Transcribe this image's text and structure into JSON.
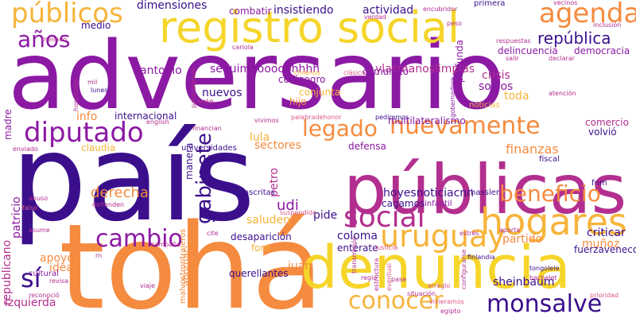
{
  "palette": {
    "deep_purple": "#3b0f8c",
    "purple": "#8b19a3",
    "magenta": "#b32f8f",
    "pink": "#d8578a",
    "orange": "#f58b3f",
    "light_orange": "#f6b43a",
    "yellow": "#f5d52a"
  },
  "words": [
    "adversario",
    "país",
    "tohá",
    "denuncia",
    "públicas",
    "registro social",
    "hogares",
    "diputado",
    "públicos",
    "agenda",
    "uruguay",
    "social",
    "nuevamente",
    "beneficio",
    "gabinete",
    "legado",
    "cambio",
    "conocer",
    "monsalve",
    "años",
    "república",
    "seguimoooooohhhh",
    "ylasmanoslimpias",
    "antonio",
    "sí",
    "derecha",
    "udi",
    "saluden",
    "hoyesnoticiacnn",
    "coloma",
    "apoyo",
    "finanzas",
    "crisis",
    "socios",
    "toda",
    "profunda",
    "idea",
    "izquierda",
    "republicano",
    "patricio",
    "madre",
    "lula",
    "sectores",
    "pide",
    "info",
    "claudia",
    "juan",
    "desaparición",
    "font",
    "partido",
    "entérate",
    "muñoz",
    "criticar",
    "fuerzavenecos",
    "sheinbaum",
    "dimensiones",
    "insistiendo",
    "actividad",
    "combatir",
    "medio",
    "delincuencia",
    "democracia",
    "nuevos",
    "internacional",
    "comunicó",
    "conjunta",
    "hijo",
    "códigoqro",
    "multilateralismo",
    "volvió",
    "comercio",
    "defensa",
    "universidades",
    "manera",
    "petro",
    "infantil",
    "cagamos",
    "inscritas",
    "querellantes",
    "abordar",
    "cultural",
    "hassler",
    "fnm",
    "fiscal",
    "noticias",
    "malvostrontrajeros",
    "gobernadore",
    "vecinos",
    "primera",
    "verdad",
    "encubridor",
    "peso",
    "respuestas",
    "salir",
    "declarar",
    "paracetamol",
    "cariola",
    "mellado",
    "lunes",
    "mil",
    "hospitales",
    "chilenos",
    "clásico",
    "inclusión",
    "atención",
    "enviado",
    "english",
    "abuso",
    "asume",
    "falso",
    "defienden",
    "pediremos",
    "vivimos",
    "pase",
    "transmisión",
    "finlandia",
    "bachelet",
    "tongolele",
    "regio",
    "eventual",
    "viaje",
    "rn",
    "reconoció",
    "revisa",
    "cite",
    "campaña",
    "estrés",
    "prioridad",
    "situación",
    "egipto",
    "vivieramos",
    "arreglo",
    "justicia",
    "estructura",
    "configurarse",
    "aporta",
    "palabradehonor",
    "woke",
    "financian",
    "suspendido"
  ]
}
